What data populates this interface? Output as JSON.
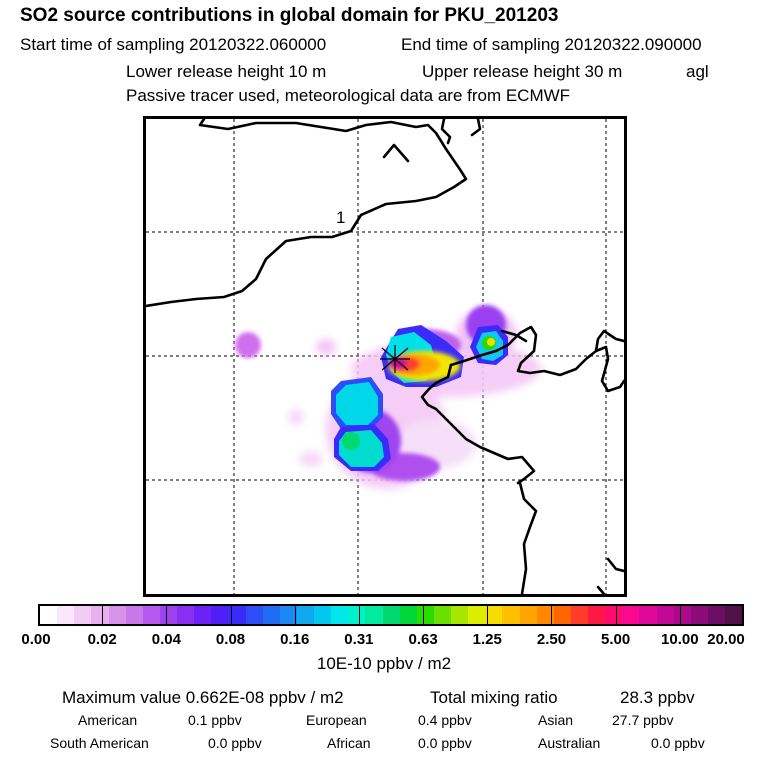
{
  "header": {
    "title": "SO2 source contributions in global domain for PKU_201203",
    "start_sampling": "Start time of sampling 20120322.060000",
    "end_sampling": "End time of sampling 20120322.090000",
    "lower_release": "Lower release height   10 m",
    "upper_release": "Upper release height   30 m",
    "agl": "agl",
    "tracer_note": "Passive tracer used, meteorological data are from ECMWF"
  },
  "map": {
    "contour_label": "1",
    "receptor_marker": "receptor-star"
  },
  "colorbar": {
    "colors": [
      "#ffffff",
      "#fbe6fb",
      "#f2ccf5",
      "#e8b0ef",
      "#d892ea",
      "#c978ec",
      "#b659f0",
      "#a041ef",
      "#8a2eef",
      "#6c22f4",
      "#4f1ff6",
      "#3a2cf8",
      "#2f4df7",
      "#1f6cf5",
      "#1a89f3",
      "#12a7f1",
      "#00c8f0",
      "#00e8ea",
      "#00f2cc",
      "#00eaa0",
      "#00d870",
      "#00d83a",
      "#28dc00",
      "#6ae000",
      "#a6e600",
      "#dcee00",
      "#f6dc00",
      "#ffc000",
      "#ffa400",
      "#ff8800",
      "#ff6600",
      "#ff3c2a",
      "#ff1846",
      "#ff0a6e",
      "#fa0890",
      "#e0089a",
      "#c40896",
      "#a80a8a",
      "#8a0c7a",
      "#6c0e66",
      "#501048"
    ],
    "tick_labels": [
      "0.00",
      "0.02",
      "0.04",
      "0.08",
      "0.16",
      "0.31",
      "0.63",
      "1.25",
      "2.50",
      "5.00",
      "10.00",
      "20.00"
    ],
    "unit": "10E-10 ppbv / m2"
  },
  "summary": {
    "max_value": "Maximum value  0.662E-08 ppbv / m2",
    "total_mixing": "Total mixing ratio",
    "total_value": "28.3 ppbv",
    "regions": [
      {
        "name": "American",
        "value": "0.1 ppbv"
      },
      {
        "name": "European",
        "value": "0.4 ppbv"
      },
      {
        "name": "Asian",
        "value": "27.7 ppbv"
      },
      {
        "name": "South American",
        "value": "0.0 ppbv"
      },
      {
        "name": "African",
        "value": "0.0 ppbv"
      },
      {
        "name": "Australian",
        "value": "0.0 ppbv"
      }
    ]
  }
}
